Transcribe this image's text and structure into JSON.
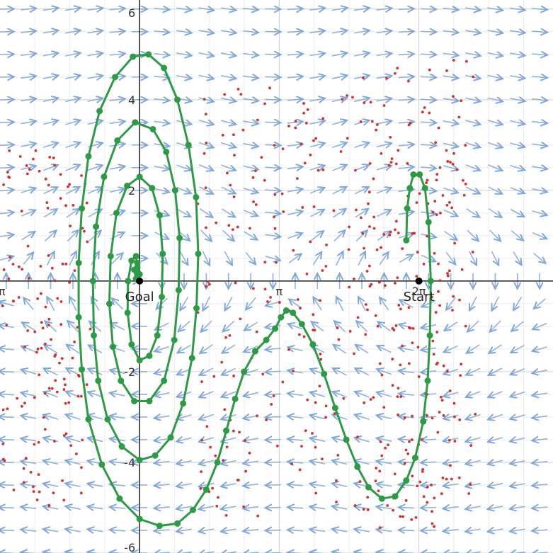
{
  "chart_data": {
    "type": "scatter",
    "description_free": true,
    "xlim": [
      -3.14,
      9.3
    ],
    "ylim": [
      -6.0,
      6.2
    ],
    "grid": true,
    "x_ticks": [
      {
        "value": -3.14159,
        "label": "-π"
      },
      {
        "value": 3.14159,
        "label": "π"
      },
      {
        "value": 6.28318,
        "label": "2π"
      }
    ],
    "y_ticks": [
      {
        "value": 6,
        "label": "6"
      },
      {
        "value": 4,
        "label": "4"
      },
      {
        "value": 2,
        "label": "2"
      },
      {
        "value": -2,
        "label": "-2"
      },
      {
        "value": -4,
        "label": "-4"
      },
      {
        "value": -6,
        "label": "-6"
      }
    ],
    "points": [
      {
        "x": 0,
        "y": 0,
        "label": "Goal"
      },
      {
        "x": 6.28318,
        "y": 0,
        "label": "Start"
      }
    ],
    "vector_field": {
      "system": "pendulum",
      "x_step": 0.5,
      "y_step": 0.5,
      "color": "#7fa6d8"
    },
    "samples": {
      "color": "#cc3333",
      "count": 520
    },
    "trajectory": {
      "color": "#2e9a46",
      "points": [
        [
          6.0,
          0.9
        ],
        [
          6.02,
          1.6
        ],
        [
          6.08,
          2.05
        ],
        [
          6.16,
          2.35
        ],
        [
          6.3,
          2.35
        ],
        [
          6.42,
          2.05
        ],
        [
          6.5,
          1.3
        ],
        [
          6.55,
          0.0
        ],
        [
          6.53,
          -1.2
        ],
        [
          6.48,
          -2.2
        ],
        [
          6.38,
          -3.1
        ],
        [
          6.2,
          -3.9
        ],
        [
          6.0,
          -4.4
        ],
        [
          5.75,
          -4.75
        ],
        [
          5.45,
          -4.8
        ],
        [
          5.15,
          -4.55
        ],
        [
          4.9,
          -4.1
        ],
        [
          4.65,
          -3.5
        ],
        [
          4.4,
          -2.8
        ],
        [
          4.15,
          -2.05
        ],
        [
          3.9,
          -1.4
        ],
        [
          3.65,
          -0.95
        ],
        [
          3.45,
          -0.7
        ],
        [
          3.3,
          -0.65
        ],
        [
          3.18,
          -0.8
        ],
        [
          3.05,
          -1.05
        ],
        [
          2.85,
          -1.3
        ],
        [
          2.6,
          -1.55
        ],
        [
          2.35,
          -2.0
        ],
        [
          2.15,
          -2.6
        ],
        [
          1.95,
          -3.3
        ],
        [
          1.75,
          -4.0
        ],
        [
          1.5,
          -4.6
        ],
        [
          1.2,
          -5.05
        ],
        [
          0.85,
          -5.35
        ],
        [
          0.45,
          -5.4
        ],
        [
          0.0,
          -5.25
        ],
        [
          -0.45,
          -4.8
        ],
        [
          -0.85,
          -4.05
        ],
        [
          -1.15,
          -3.05
        ],
        [
          -1.3,
          -1.95
        ],
        [
          -1.37,
          -0.8
        ],
        [
          -1.37,
          0.4
        ],
        [
          -1.3,
          1.6
        ],
        [
          -1.15,
          2.75
        ],
        [
          -0.9,
          3.75
        ],
        [
          -0.55,
          4.5
        ],
        [
          -0.15,
          4.95
        ],
        [
          0.2,
          5.0
        ],
        [
          0.55,
          4.7
        ],
        [
          0.85,
          4.0
        ],
        [
          1.1,
          3.0
        ],
        [
          1.27,
          1.85
        ],
        [
          1.32,
          0.6
        ],
        [
          1.28,
          -0.6
        ],
        [
          1.18,
          -1.7
        ],
        [
          0.98,
          -2.7
        ],
        [
          0.7,
          -3.45
        ],
        [
          0.35,
          -3.85
        ],
        [
          0.0,
          -3.95
        ],
        [
          -0.4,
          -3.65
        ],
        [
          -0.72,
          -3.05
        ],
        [
          -0.93,
          -2.2
        ],
        [
          -1.03,
          -1.2
        ],
        [
          -1.05,
          0.0
        ],
        [
          -0.98,
          1.2
        ],
        [
          -0.8,
          2.3
        ],
        [
          -0.5,
          3.1
        ],
        [
          -0.1,
          3.5
        ],
        [
          0.3,
          3.35
        ],
        [
          0.6,
          2.85
        ],
        [
          0.8,
          2.0
        ],
        [
          0.9,
          0.95
        ],
        [
          0.88,
          -0.2
        ],
        [
          0.78,
          -1.3
        ],
        [
          0.55,
          -2.2
        ],
        [
          0.22,
          -2.65
        ],
        [
          -0.12,
          -2.65
        ],
        [
          -0.42,
          -2.2
        ],
        [
          -0.6,
          -1.45
        ],
        [
          -0.68,
          -0.5
        ],
        [
          -0.65,
          0.55
        ],
        [
          -0.52,
          1.5
        ],
        [
          -0.28,
          2.1
        ],
        [
          0.0,
          2.3
        ],
        [
          0.28,
          2.05
        ],
        [
          0.45,
          1.45
        ],
        [
          0.52,
          0.6
        ],
        [
          0.5,
          -0.35
        ],
        [
          0.4,
          -1.2
        ],
        [
          0.22,
          -1.65
        ],
        [
          0.0,
          -1.75
        ],
        [
          -0.18,
          -1.4
        ],
        [
          -0.27,
          -0.7
        ],
        [
          -0.26,
          0.0
        ],
        [
          -0.18,
          0.45
        ],
        [
          -0.08,
          0.55
        ],
        [
          -0.05,
          0.3
        ],
        [
          -0.08,
          0.05
        ],
        [
          -0.12,
          0.25
        ],
        [
          -0.05,
          0.4
        ],
        [
          0.0,
          0.15
        ]
      ]
    }
  }
}
